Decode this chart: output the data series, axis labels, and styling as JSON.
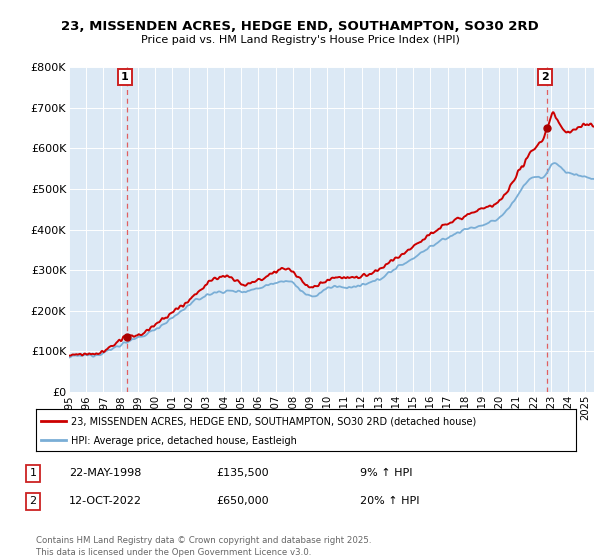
{
  "title": "23, MISSENDEN ACRES, HEDGE END, SOUTHAMPTON, SO30 2RD",
  "subtitle": "Price paid vs. HM Land Registry's House Price Index (HPI)",
  "background_color": "#ffffff",
  "chart_bg_color": "#dce9f5",
  "grid_color": "#ffffff",
  "legend_label_red": "23, MISSENDEN ACRES, HEDGE END, SOUTHAMPTON, SO30 2RD (detached house)",
  "legend_label_blue": "HPI: Average price, detached house, Eastleigh",
  "annotation1_date": "22-MAY-1998",
  "annotation1_price": "£135,500",
  "annotation1_hpi": "9% ↑ HPI",
  "annotation2_date": "12-OCT-2022",
  "annotation2_price": "£650,000",
  "annotation2_hpi": "20% ↑ HPI",
  "footer": "Contains HM Land Registry data © Crown copyright and database right 2025.\nThis data is licensed under the Open Government Licence v3.0.",
  "ylim": [
    0,
    800000
  ],
  "yticks": [
    0,
    100000,
    200000,
    300000,
    400000,
    500000,
    600000,
    700000,
    800000
  ],
  "ytick_labels": [
    "£0",
    "£100K",
    "£200K",
    "£300K",
    "£400K",
    "£500K",
    "£600K",
    "£700K",
    "£800K"
  ],
  "sale1_x": 1998.38,
  "sale1_y": 135500,
  "sale2_x": 2022.79,
  "sale2_y": 650000,
  "red_color": "#cc0000",
  "blue_color": "#7aaed6",
  "vline_color": "#e06060",
  "dot_color": "#aa0000",
  "xlim_left": 1995.0,
  "xlim_right": 2025.5
}
